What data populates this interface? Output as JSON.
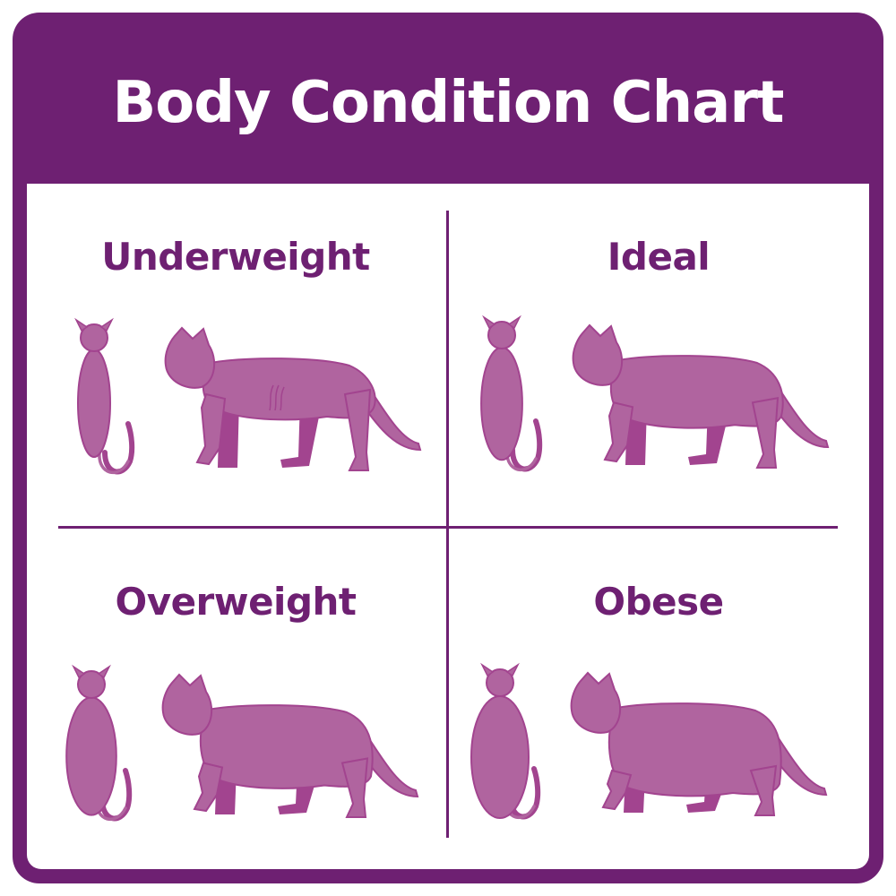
{
  "title": "Body Condition Chart",
  "colors": {
    "frame": "#6e2072",
    "cat_body": "#b0649f",
    "cat_shade": "#a2448f"
  },
  "panels": [
    {
      "label": "Underweight",
      "icon": "thin-cat-icon"
    },
    {
      "label": "Ideal",
      "icon": "ideal-cat-icon"
    },
    {
      "label": "Overweight",
      "icon": "overweight-cat-icon"
    },
    {
      "label": "Obese",
      "icon": "obese-cat-icon"
    }
  ]
}
